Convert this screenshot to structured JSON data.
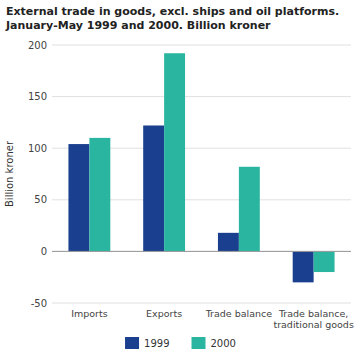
{
  "chart_data": {
    "type": "bar",
    "title": "External trade in goods, excl. ships and oil platforms.\nJanuary-May 1999 and 2000. Billion kroner",
    "ylabel": "Billion kroner",
    "categories": [
      "Imports",
      "Exports",
      "Trade balance",
      "Trade balance,\ntraditional goods"
    ],
    "series": [
      {
        "name": "1999",
        "color": "#1a3f8f",
        "values": [
          104,
          122,
          18,
          -30
        ]
      },
      {
        "name": "2000",
        "color": "#2ab5a0",
        "values": [
          110,
          192,
          82,
          -20
        ]
      }
    ],
    "ylim": [
      -50,
      200
    ],
    "yticks": [
      -50,
      0,
      50,
      100,
      150,
      200
    ],
    "grid": true,
    "legend": "bottom"
  }
}
